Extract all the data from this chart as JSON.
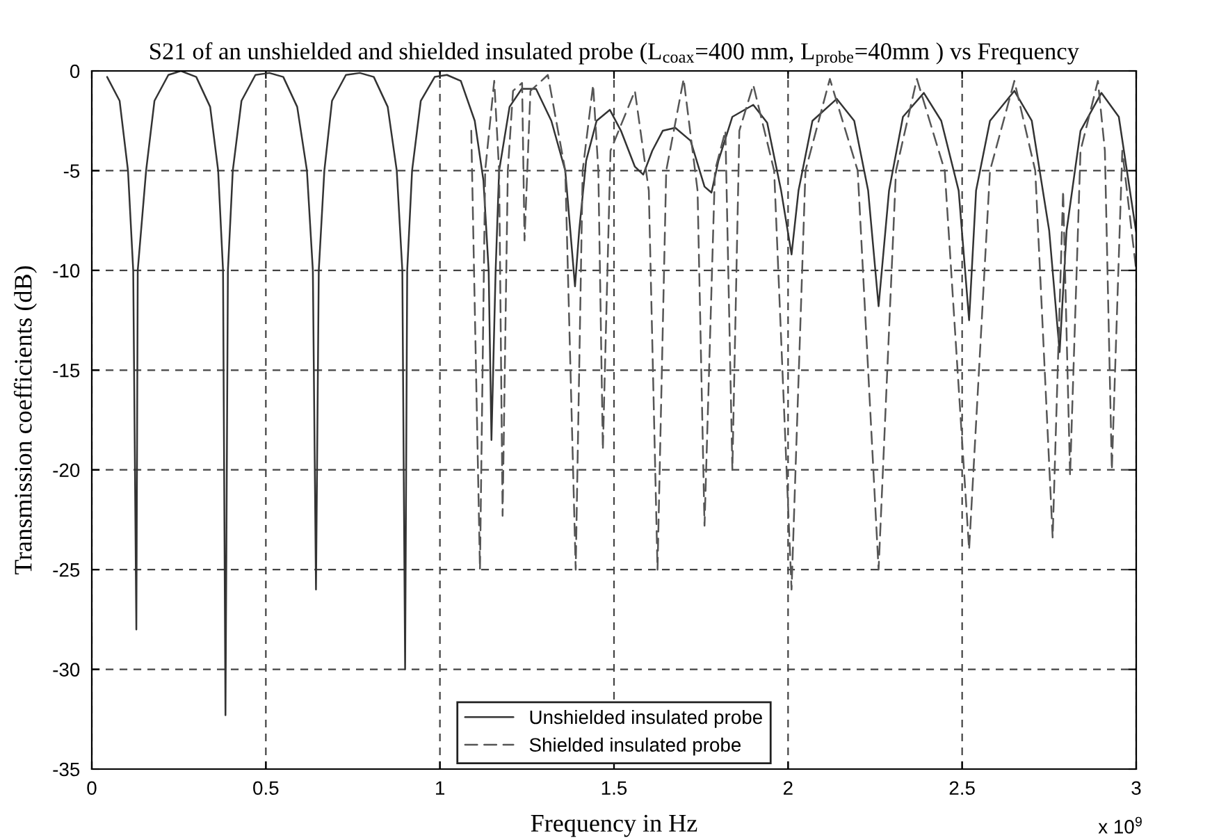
{
  "chart_data": {
    "type": "line",
    "title": "S21 of an unshielded and shielded insulated probe (L$_{coax}$=400 mm, L$_{probe}$=40mm ) vs Frequency",
    "xlabel": "Frequency in Hz",
    "ylabel": "Transmission coefficients (dB)",
    "annotations": [
      "x 10$^{9}$"
    ],
    "xlim": [
      0,
      3
    ],
    "xticks": [
      0,
      0.5,
      1,
      1.5,
      2,
      2.5,
      3
    ],
    "ylim": [
      -35,
      0
    ],
    "yticks": [
      -35,
      -30,
      -25,
      -20,
      -15,
      -10,
      -5,
      0
    ],
    "grid": true,
    "legend": "bottom",
    "marker": "none",
    "series": [
      {
        "name": "Unshielded insulated probe",
        "color": "#333333",
        "line_style": "solid",
        "x": [
          0.044,
          0.08,
          0.104,
          0.119,
          0.128,
          0.132,
          0.156,
          0.18,
          0.22,
          0.256,
          0.3,
          0.34,
          0.363,
          0.377,
          0.384,
          0.391,
          0.405,
          0.43,
          0.47,
          0.51,
          0.55,
          0.59,
          0.618,
          0.635,
          0.644,
          0.652,
          0.668,
          0.69,
          0.73,
          0.77,
          0.81,
          0.85,
          0.876,
          0.892,
          0.9,
          0.906,
          0.92,
          0.945,
          0.985,
          1.02,
          1.06,
          1.1,
          1.125,
          1.14,
          1.148,
          1.16,
          1.17,
          1.2,
          1.235,
          1.276,
          1.32,
          1.36,
          1.388,
          1.4,
          1.42,
          1.45,
          1.488,
          1.52,
          1.56,
          1.584,
          1.61,
          1.64,
          1.676,
          1.72,
          1.76,
          1.78,
          1.8,
          1.84,
          1.9,
          1.94,
          1.98,
          2.01,
          2.03,
          2.07,
          2.14,
          2.19,
          2.23,
          2.26,
          2.29,
          2.33,
          2.39,
          2.44,
          2.49,
          2.52,
          2.54,
          2.58,
          2.65,
          2.7,
          2.75,
          2.78,
          2.8,
          2.84,
          2.9,
          2.95,
          3.0
        ],
        "values": [
          -0.3,
          -1.5,
          -5,
          -10,
          -28,
          -10,
          -5,
          -1.5,
          -0.2,
          0,
          -0.3,
          -1.8,
          -5,
          -10,
          -32.3,
          -10,
          -5,
          -1.5,
          -0.2,
          -0.1,
          -0.3,
          -1.8,
          -5,
          -10,
          -26,
          -10,
          -5,
          -1.5,
          -0.2,
          -0.1,
          -0.3,
          -1.8,
          -5,
          -10,
          -30,
          -10,
          -5,
          -1.5,
          -0.3,
          -0.2,
          -0.5,
          -2.5,
          -5.5,
          -10,
          -18.5,
          -10,
          -5,
          -1.8,
          -0.9,
          -0.9,
          -2.5,
          -5,
          -10.8,
          -8,
          -4.5,
          -2.5,
          -1.95,
          -3,
          -4.8,
          -5.2,
          -4,
          -3,
          -2.85,
          -3.5,
          -5.8,
          -6.1,
          -4.5,
          -2.3,
          -1.7,
          -2.6,
          -6,
          -9.2,
          -6,
          -2.5,
          -1.4,
          -2.5,
          -6,
          -11.8,
          -6,
          -2.3,
          -1.1,
          -2.5,
          -6,
          -12.5,
          -6,
          -2.5,
          -1.0,
          -2.5,
          -8,
          -14.1,
          -8,
          -3,
          -1.1,
          -2.3,
          -8.1
        ]
      },
      {
        "name": "Shielded insulated probe",
        "color": "#555555",
        "line_style": "dashed",
        "x": [
          1.09,
          1.115,
          1.13,
          1.156,
          1.17,
          1.18,
          1.195,
          1.21,
          1.236,
          1.243,
          1.26,
          1.31,
          1.36,
          1.39,
          1.41,
          1.44,
          1.455,
          1.468,
          1.49,
          1.56,
          1.6,
          1.625,
          1.65,
          1.7,
          1.74,
          1.76,
          1.79,
          1.82,
          1.84,
          1.86,
          1.9,
          1.96,
          2.01,
          2.05,
          2.12,
          2.2,
          2.26,
          2.31,
          2.37,
          2.45,
          2.52,
          2.58,
          2.65,
          2.71,
          2.76,
          2.79,
          2.81,
          2.84,
          2.89,
          2.91,
          2.93,
          2.96,
          3.0
        ],
        "values": [
          -3,
          -25,
          -5,
          -0.5,
          -5,
          -22.3,
          -5,
          -1,
          -0.6,
          -8.5,
          -1,
          -0.2,
          -5,
          -25,
          -5,
          -0.7,
          -5,
          -19,
          -4,
          -1.0,
          -6,
          -25,
          -5,
          -0.4,
          -6,
          -22.8,
          -5,
          -3,
          -20,
          -3,
          -0.7,
          -5,
          -26,
          -5,
          -0.4,
          -5,
          -25,
          -5,
          -0.4,
          -5,
          -24,
          -5,
          -0.5,
          -5,
          -23.4,
          -6,
          -20.3,
          -4,
          -0.5,
          -4,
          -20,
          -4,
          -10
        ]
      }
    ]
  }
}
